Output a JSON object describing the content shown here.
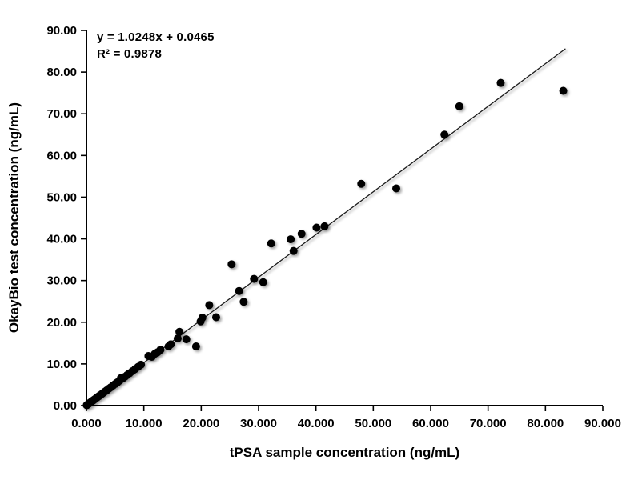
{
  "figure": {
    "equation": "y = 1.0248x + 0.0465",
    "r_squared": "R² = 0.9878",
    "x_axis_title": "tPSA sample concentration (ng/mL)",
    "y_axis_title": "OkayBio test concentration (ng/mL)"
  },
  "colors": {
    "background": "#ffffff",
    "point": "#000000",
    "trendline": "#1a1a1a",
    "axis": "#000000",
    "text": "#000000"
  },
  "chart_data": {
    "type": "scatter",
    "title": "",
    "xlabel": "tPSA sample concentration (ng/mL)",
    "ylabel": "OkayBio test concentration (ng/mL)",
    "xlim": [
      0,
      90
    ],
    "ylim": [
      0,
      90
    ],
    "grid": false,
    "legend_position": "none",
    "x_tick_labels": [
      "0.000",
      "10.000",
      "20.000",
      "30.000",
      "40.000",
      "50.000",
      "60.000",
      "70.000",
      "80.000",
      "90.000"
    ],
    "y_tick_labels": [
      "0.00",
      "10.00",
      "20.00",
      "30.00",
      "40.00",
      "50.00",
      "60.00",
      "70.00",
      "80.00",
      "90.00"
    ],
    "trendline": {
      "slope": 1.0248,
      "intercept": 0.0465,
      "x_start": 0,
      "x_end": 83.5,
      "equation": "y = 1.0248x + 0.0465",
      "r_squared": "R² = 0.9878"
    },
    "points": [
      [
        0.05,
        0.1
      ],
      [
        0.12,
        0.16
      ],
      [
        0.2,
        0.25
      ],
      [
        0.32,
        0.36
      ],
      [
        0.45,
        0.5
      ],
      [
        0.6,
        0.66
      ],
      [
        0.75,
        0.81
      ],
      [
        0.9,
        0.97
      ],
      [
        1.1,
        1.17
      ],
      [
        1.3,
        1.38
      ],
      [
        1.55,
        1.63
      ],
      [
        1.8,
        1.89
      ],
      [
        2.1,
        2.2
      ],
      [
        2.4,
        2.5
      ],
      [
        2.7,
        2.81
      ],
      [
        3.0,
        3.12
      ],
      [
        3.3,
        3.43
      ],
      [
        3.6,
        3.73
      ],
      [
        3.9,
        4.05
      ],
      [
        4.25,
        4.4
      ],
      [
        4.6,
        4.77
      ],
      [
        5.0,
        5.17
      ],
      [
        5.4,
        5.58
      ],
      [
        5.8,
        6.0
      ],
      [
        6.0,
        6.6
      ],
      [
        6.3,
        6.5
      ],
      [
        6.7,
        6.92
      ],
      [
        7.1,
        7.33
      ],
      [
        7.5,
        7.75
      ],
      [
        8.0,
        8.25
      ],
      [
        8.5,
        8.78
      ],
      [
        9.0,
        9.28
      ],
      [
        9.5,
        9.82
      ],
      [
        10.8,
        11.9
      ],
      [
        11.4,
        11.7
      ],
      [
        11.9,
        12.4
      ],
      [
        12.4,
        12.8
      ],
      [
        12.9,
        13.4
      ],
      [
        14.3,
        14.2
      ],
      [
        14.7,
        14.7
      ],
      [
        15.9,
        16.1
      ],
      [
        16.2,
        17.7
      ],
      [
        17.4,
        15.9
      ],
      [
        19.1,
        14.2
      ],
      [
        19.9,
        20.2
      ],
      [
        20.2,
        21.1
      ],
      [
        21.4,
        24.1
      ],
      [
        22.6,
        21.2
      ],
      [
        25.3,
        33.9
      ],
      [
        26.6,
        27.5
      ],
      [
        27.4,
        24.9
      ],
      [
        29.2,
        30.4
      ],
      [
        30.8,
        29.6
      ],
      [
        32.2,
        38.9
      ],
      [
        35.6,
        39.9
      ],
      [
        36.1,
        37.1
      ],
      [
        37.5,
        41.2
      ],
      [
        40.1,
        42.7
      ],
      [
        41.5,
        43.0
      ],
      [
        47.9,
        53.2
      ],
      [
        54.0,
        52.1
      ],
      [
        62.4,
        65.0
      ],
      [
        65.0,
        71.8
      ],
      [
        72.2,
        77.4
      ],
      [
        83.1,
        75.5
      ]
    ]
  }
}
